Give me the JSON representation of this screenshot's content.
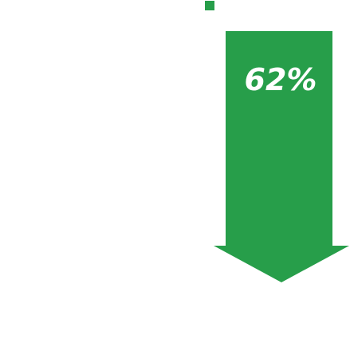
{
  "arrow": {
    "label": "62%"
  }
}
